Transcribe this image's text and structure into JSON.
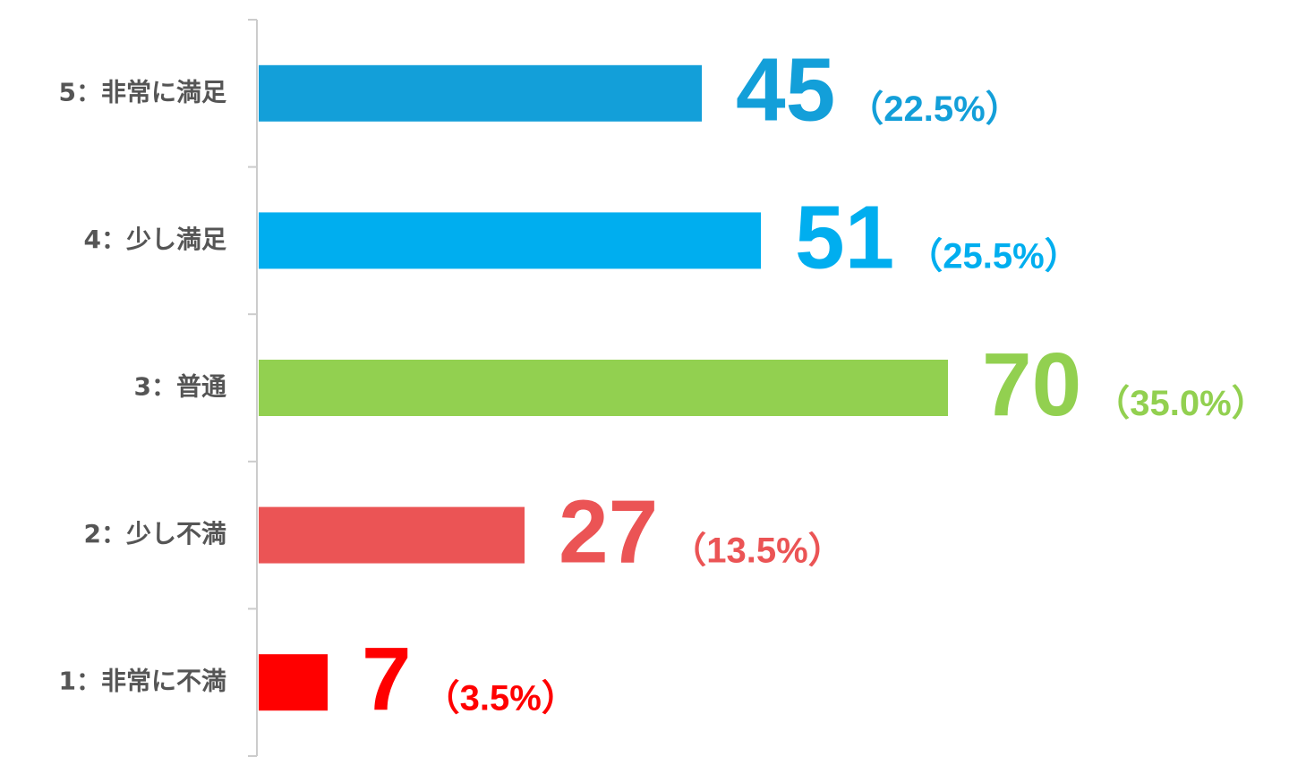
{
  "chart_data": {
    "type": "bar",
    "orientation": "horizontal",
    "categories": [
      "5：非常に満足",
      "4：少し満足",
      "3：普通",
      "2：少し不満",
      "1：非常に不満"
    ],
    "values": [
      45,
      51,
      70,
      27,
      7
    ],
    "share_labels": [
      "（22.5%）",
      "（25.5%）",
      "（35.0%）",
      "（13.5%）",
      "（3.5%）"
    ],
    "colors": [
      "#139fd9",
      "#00aeef",
      "#92d050",
      "#eb5455",
      "#ff0000"
    ]
  }
}
